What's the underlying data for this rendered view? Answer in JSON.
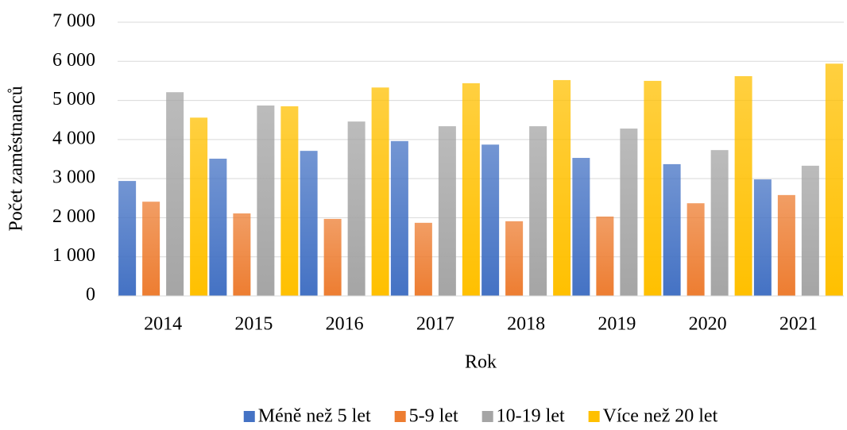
{
  "chart_data": {
    "type": "bar",
    "categories": [
      "2014",
      "2015",
      "2016",
      "2017",
      "2018",
      "2019",
      "2020",
      "2021"
    ],
    "series": [
      {
        "name": "Méně než 5 let",
        "color": "#4472c4",
        "values": [
          2940,
          3510,
          3710,
          3960,
          3870,
          3530,
          3370,
          2980
        ]
      },
      {
        "name": "5-9 let",
        "color": "#ed7d31",
        "values": [
          2410,
          2110,
          1970,
          1870,
          1910,
          2030,
          2370,
          2580
        ]
      },
      {
        "name": "10-19 let",
        "color": "#a5a5a5",
        "values": [
          5210,
          4870,
          4460,
          4340,
          4340,
          4280,
          3730,
          3330
        ]
      },
      {
        "name": "Více než 20 let",
        "color": "#ffc000",
        "values": [
          4560,
          4850,
          5330,
          5440,
          5520,
          5500,
          5620,
          5940
        ]
      }
    ],
    "xlabel": "Rok",
    "ylabel": "Počet zaměstnanců",
    "ylim": [
      0,
      7000
    ],
    "yticks": [
      0,
      {
        "value": 1000,
        "label": "1 000"
      },
      {
        "value": 2000,
        "label": "2 000"
      },
      {
        "value": 3000,
        "label": "3 000"
      },
      {
        "value": 4000,
        "label": "4 000"
      },
      {
        "value": 5000,
        "label": "5 000"
      },
      {
        "value": 6000,
        "label": "6 000"
      },
      {
        "value": 7000,
        "label": "7 000"
      }
    ],
    "grid": true,
    "legend": "bottom"
  }
}
